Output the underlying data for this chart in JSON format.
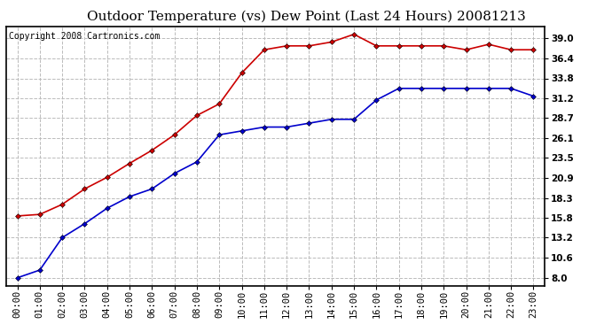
{
  "title": "Outdoor Temperature (vs) Dew Point (Last 24 Hours) 20081213",
  "copyright": "Copyright 2008 Cartronics.com",
  "x_labels": [
    "00:00",
    "01:00",
    "02:00",
    "03:00",
    "04:00",
    "05:00",
    "06:00",
    "07:00",
    "08:00",
    "09:00",
    "10:00",
    "11:00",
    "12:00",
    "13:00",
    "14:00",
    "15:00",
    "16:00",
    "17:00",
    "18:00",
    "19:00",
    "20:00",
    "21:00",
    "22:00",
    "23:00"
  ],
  "temp_data": [
    16.0,
    16.2,
    17.5,
    19.5,
    21.0,
    22.8,
    24.5,
    26.5,
    29.0,
    30.5,
    34.5,
    37.5,
    38.0,
    38.0,
    38.5,
    39.5,
    38.0,
    38.0,
    38.0,
    38.0,
    37.5,
    38.2,
    37.5,
    37.5
  ],
  "dew_data": [
    8.0,
    9.0,
    13.2,
    15.0,
    17.0,
    18.5,
    19.5,
    21.5,
    23.0,
    26.5,
    27.0,
    27.5,
    27.5,
    28.0,
    28.5,
    28.5,
    31.0,
    32.5,
    32.5,
    32.5,
    32.5,
    32.5,
    32.5,
    31.5
  ],
  "temp_color": "#cc0000",
  "dew_color": "#0000cc",
  "marker": "D",
  "marker_size": 3,
  "linewidth": 1.2,
  "y_ticks": [
    8.0,
    10.6,
    13.2,
    15.8,
    18.3,
    20.9,
    23.5,
    26.1,
    28.7,
    31.2,
    33.8,
    36.4,
    39.0
  ],
  "ylim": [
    7.0,
    40.5
  ],
  "bg_color": "#ffffff",
  "plot_bg_color": "#ffffff",
  "grid_color": "#bbbbbb",
  "title_fontsize": 11,
  "copyright_fontsize": 7,
  "tick_fontsize": 7.5
}
